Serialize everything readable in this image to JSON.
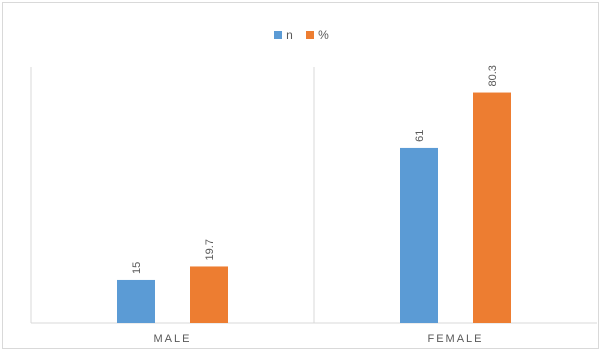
{
  "chart_data": {
    "type": "bar",
    "categories": [
      "MALE",
      "FEMALE"
    ],
    "series": [
      {
        "name": "n",
        "values": [
          15,
          61
        ],
        "color": "#5b9bd5"
      },
      {
        "name": "%",
        "values": [
          19.7,
          80.3
        ],
        "color": "#ed7d31"
      }
    ],
    "ylim": [
      0,
      90
    ],
    "grid": false,
    "legend": "top-center",
    "data_labels": true,
    "data_label_rotation": "vertical"
  }
}
